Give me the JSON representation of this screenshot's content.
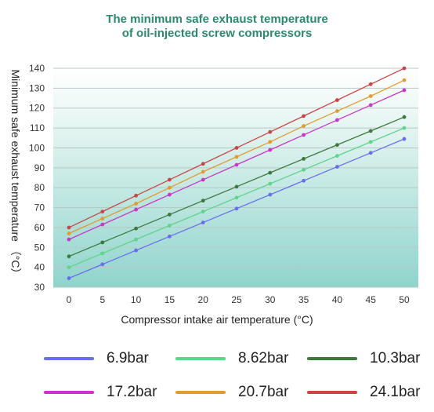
{
  "chart_data": {
    "type": "line",
    "title_lines": [
      "The minimum safe exhaust temperature",
      "of oil-injected screw compressors"
    ],
    "xlabel": "Compressor intake air temperature (°C)",
    "ylabel": "Minimum safe exhaust temperature （°C）",
    "x": [
      0,
      5,
      10,
      15,
      20,
      25,
      30,
      35,
      40,
      45,
      50
    ],
    "xlim": [
      0,
      50
    ],
    "ylim": [
      30,
      140
    ],
    "yticks": [
      30,
      40,
      50,
      60,
      70,
      80,
      90,
      100,
      110,
      120,
      130,
      140
    ],
    "grid": true,
    "legend_position": "bottom",
    "series": [
      {
        "name": "6.9bar",
        "color": "#6a6cf0",
        "values": [
          34.5,
          41.5,
          48.5,
          55.5,
          62.5,
          69.5,
          76.5,
          83.5,
          90.5,
          97.5,
          104.5
        ]
      },
      {
        "name": "8.62bar",
        "color": "#5dd58a",
        "values": [
          40,
          47,
          54,
          61,
          68,
          75,
          82,
          89,
          96,
          103,
          110
        ]
      },
      {
        "name": "10.3bar",
        "color": "#3b7a3b",
        "values": [
          45.5,
          52.5,
          59.5,
          66.5,
          73.5,
          80.5,
          87.5,
          94.5,
          101.5,
          108.5,
          115.5
        ]
      },
      {
        "name": "17.2bar",
        "color": "#cc33cc",
        "values": [
          54,
          61.5,
          69,
          76.5,
          84,
          91.5,
          99,
          106.5,
          114,
          121.5,
          129
        ]
      },
      {
        "name": "20.7bar",
        "color": "#e39c2a",
        "values": [
          57,
          64.5,
          72,
          80,
          88,
          95.5,
          103,
          111,
          118.5,
          126,
          134
        ]
      },
      {
        "name": "24.1bar",
        "color": "#cc4444",
        "values": [
          60,
          68,
          76,
          84,
          92,
          100,
          108,
          116,
          124,
          132,
          140
        ]
      }
    ]
  }
}
